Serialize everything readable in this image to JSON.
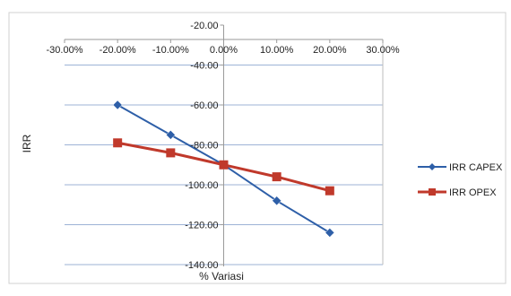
{
  "chart_data": {
    "type": "line",
    "title": "",
    "xlabel": "% Variasi",
    "ylabel": "IRR",
    "x": [
      -20,
      -10,
      0,
      10,
      20
    ],
    "x_tick_values": [
      -30,
      -20,
      -10,
      0,
      10,
      20,
      30
    ],
    "x_tick_labels": [
      "-30.00%",
      "-20.00%",
      "-10.00%",
      "0.00%",
      "10.00%",
      "20.00%",
      "30.00%"
    ],
    "y_tick_values": [
      -20,
      -40,
      -60,
      -80,
      -100,
      -120,
      -140
    ],
    "y_tick_labels": [
      "-20.00",
      "-40.00",
      "-60.00",
      "-80.00",
      "-100.00",
      "-120.00",
      "-140.00"
    ],
    "xlim": [
      -30,
      30
    ],
    "ylim": [
      -140,
      -20
    ],
    "grid": "horizontal",
    "legend_position": "right",
    "series": [
      {
        "name": "IRR CAPEX",
        "color": "#2E5FA8",
        "marker": "diamond",
        "values": [
          -60,
          -75,
          -90,
          -108,
          -124
        ]
      },
      {
        "name": "IRR OPEX",
        "color": "#C0392B",
        "marker": "square",
        "values": [
          -79,
          -84,
          -90,
          -96,
          -103
        ]
      }
    ]
  }
}
